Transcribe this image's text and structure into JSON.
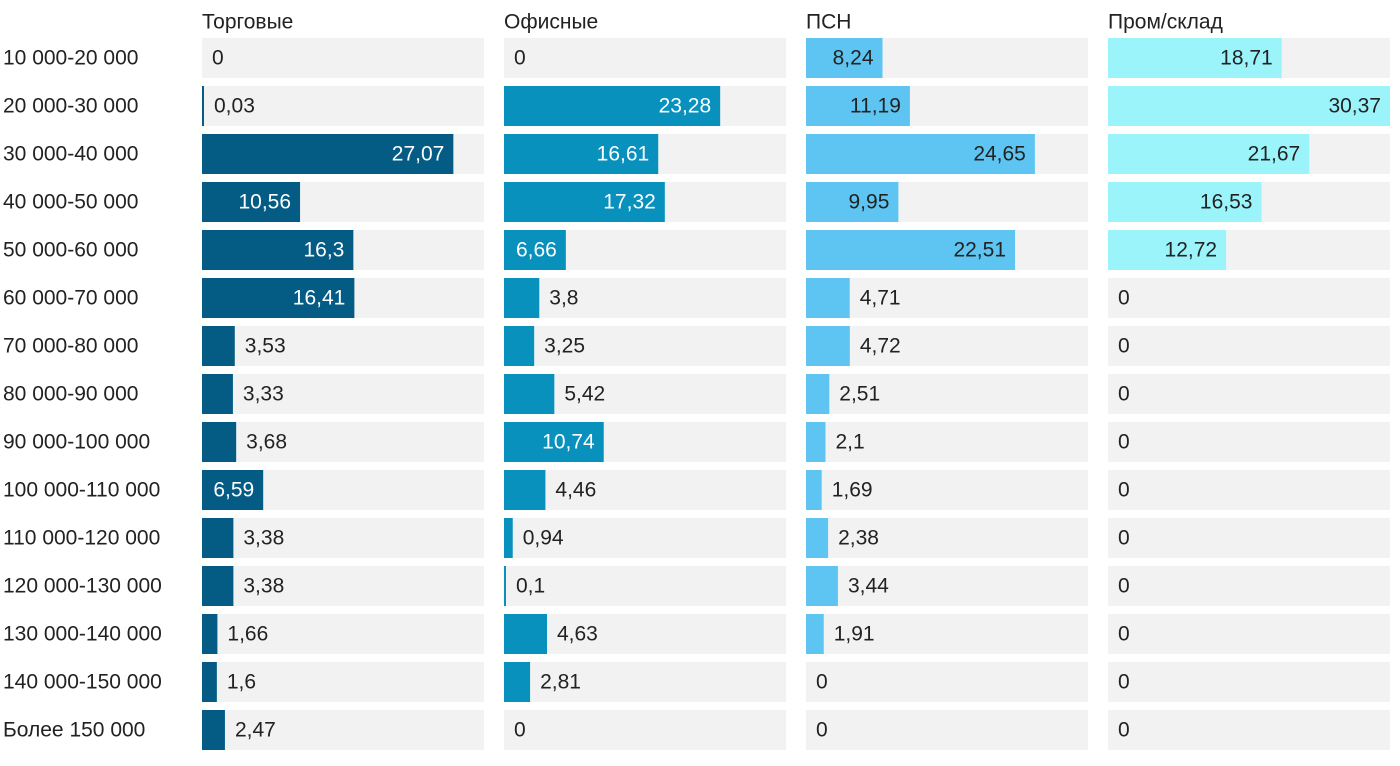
{
  "chart_data": {
    "type": "bar",
    "categories": [
      "10 000-20 000",
      "20 000-30 000",
      "30 000-40 000",
      "40 000-50 000",
      "50 000-60 000",
      "60 000-70 000",
      "70 000-80 000",
      "80 000-90 000",
      "90 000-100 000",
      "100 000-110 000",
      "110 000-120 000",
      "120 000-130 000",
      "130 000-140 000",
      "140 000-150 000",
      "Более 150 000"
    ],
    "series": [
      {
        "name": "Торговые",
        "color": "#045c85",
        "values": [
          0,
          0.03,
          27.07,
          10.56,
          16.3,
          16.41,
          3.53,
          3.33,
          3.68,
          6.59,
          3.38,
          3.38,
          1.66,
          1.6,
          2.47
        ],
        "labels": [
          "0",
          "0,03",
          "27,07",
          "10,56",
          "16,3",
          "16,41",
          "3,53",
          "3,33",
          "3,68",
          "6,59",
          "3,38",
          "3,38",
          "1,66",
          "1,6",
          "2,47"
        ]
      },
      {
        "name": "Офисные",
        "color": "#0891bd",
        "values": [
          0,
          23.28,
          16.61,
          17.32,
          6.66,
          3.8,
          3.25,
          5.42,
          10.74,
          4.46,
          0.94,
          0.1,
          4.63,
          2.81,
          0
        ],
        "labels": [
          "0",
          "23,28",
          "16,61",
          "17,32",
          "6,66",
          "3,8",
          "3,25",
          "5,42",
          "10,74",
          "4,46",
          "0,94",
          "0,1",
          "4,63",
          "2,81",
          "0"
        ]
      },
      {
        "name": "ПСН",
        "color": "#5ec5f2",
        "values": [
          8.24,
          11.19,
          24.65,
          9.95,
          22.51,
          4.71,
          4.72,
          2.51,
          2.1,
          1.69,
          2.38,
          3.44,
          1.91,
          0,
          0
        ],
        "labels": [
          "8,24",
          "11,19",
          "24,65",
          "9,95",
          "22,51",
          "4,71",
          "4,72",
          "2,51",
          "2,1",
          "1,69",
          "2,38",
          "3,44",
          "1,91",
          "0",
          "0"
        ]
      },
      {
        "name": "Пром/склад",
        "color": "#9af4fa",
        "values": [
          18.71,
          30.37,
          21.67,
          16.53,
          12.72,
          0,
          0,
          0,
          0,
          0,
          0,
          0,
          0,
          0,
          0
        ],
        "labels": [
          "18,71",
          "30,37",
          "21,67",
          "16,53",
          "12,72",
          "0",
          "0",
          "0",
          "0",
          "0",
          "0",
          "0",
          "0",
          "0",
          "0"
        ]
      }
    ],
    "panel_background": "#f2f2f2",
    "legend": "none",
    "grid": false
  }
}
